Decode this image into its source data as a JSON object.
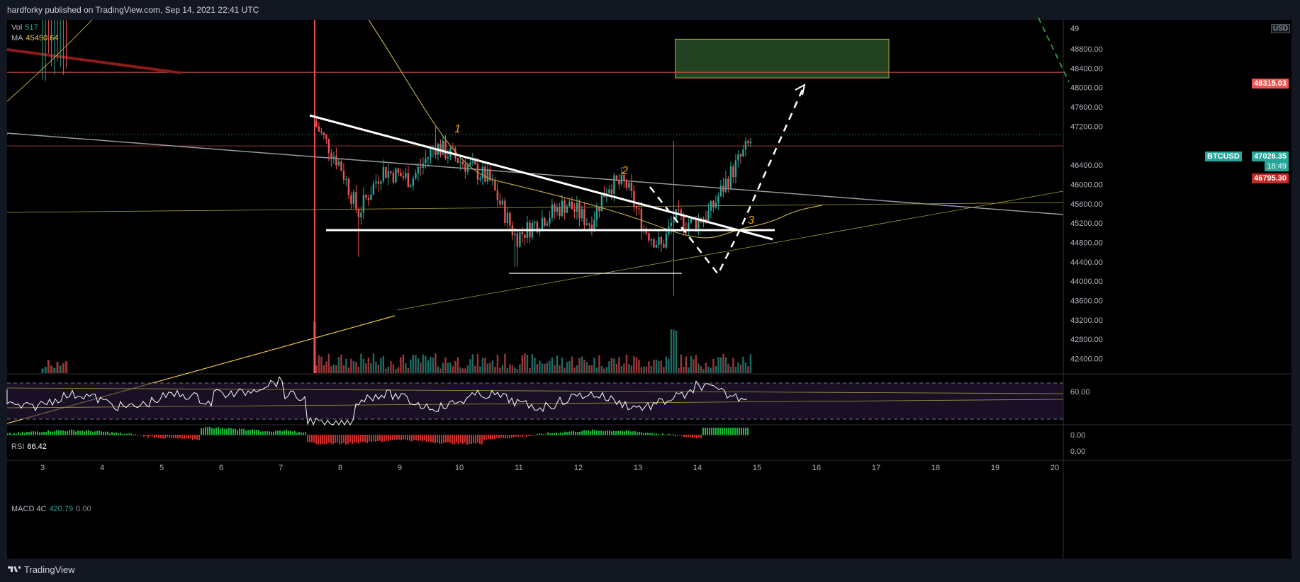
{
  "header": {
    "text": "hardforky published on TradingView.com, Sep 14, 2021 22:41 UTC"
  },
  "footer": {
    "brand": "TradingView"
  },
  "legend": {
    "vol_label": "Vol",
    "vol_value": "517",
    "ma_label": "MA",
    "ma_value": "45450.64"
  },
  "currency": "USD",
  "symbol": "BTCUSD",
  "price_tags": {
    "level_red": "48315.03",
    "current": "47026.35",
    "countdown": "18:49",
    "prev_close": "46795.30"
  },
  "annotations": [
    "1",
    "2",
    "3"
  ],
  "rsi": {
    "label": "RSI",
    "value": "66.42",
    "axis_label": "60.00"
  },
  "macd": {
    "label": "MACD 4C",
    "value": "420.79",
    "value2": "0.00",
    "axis_labels": [
      "0.00",
      "0.00"
    ]
  },
  "colors": {
    "up": "#26a69a",
    "down": "#ef5350",
    "accent": "#f7a600",
    "zone": "#2e5a2e"
  },
  "chart_data": {
    "type": "candlestick",
    "x_ticks": [
      "3",
      "4",
      "5",
      "6",
      "7",
      "8",
      "9",
      "10",
      "11",
      "12",
      "13",
      "14",
      "15",
      "16",
      "17",
      "18",
      "19",
      "20"
    ],
    "y_ticks": [
      42400,
      42800,
      43200,
      43600,
      44000,
      44400,
      44800,
      45200,
      45600,
      46000,
      46400,
      47200,
      47600,
      48000,
      48400,
      48800
    ],
    "ylim": [
      42100,
      49400
    ],
    "current_price": 47026.35,
    "resistance_level": 48315.03,
    "prev_close_level": 46795.3,
    "support_level": 45050,
    "lower_support": 44150,
    "target_zone": {
      "x": [
        13.9,
        17.5
      ],
      "y": [
        48200,
        49000
      ]
    },
    "key_points": [
      {
        "day": 7.6,
        "open": 47400,
        "high": 49800,
        "low": 43600,
        "close": 46800
      },
      {
        "day": 8.3,
        "low": 44500,
        "close": 46200
      },
      {
        "day": 9.6,
        "high": 47200,
        "close": 46700
      },
      {
        "day": 10.95,
        "low": 44300,
        "close": 45000
      },
      {
        "day": 12.8,
        "high": 46300,
        "close": 46100
      },
      {
        "day": 13.6,
        "low": 43700,
        "high": 46900,
        "close": 45300
      },
      {
        "day": 14.9,
        "high": 47250,
        "close": 47026
      }
    ],
    "rsi_range": [
      0,
      100
    ],
    "grid": false,
    "legend": "top-left"
  }
}
